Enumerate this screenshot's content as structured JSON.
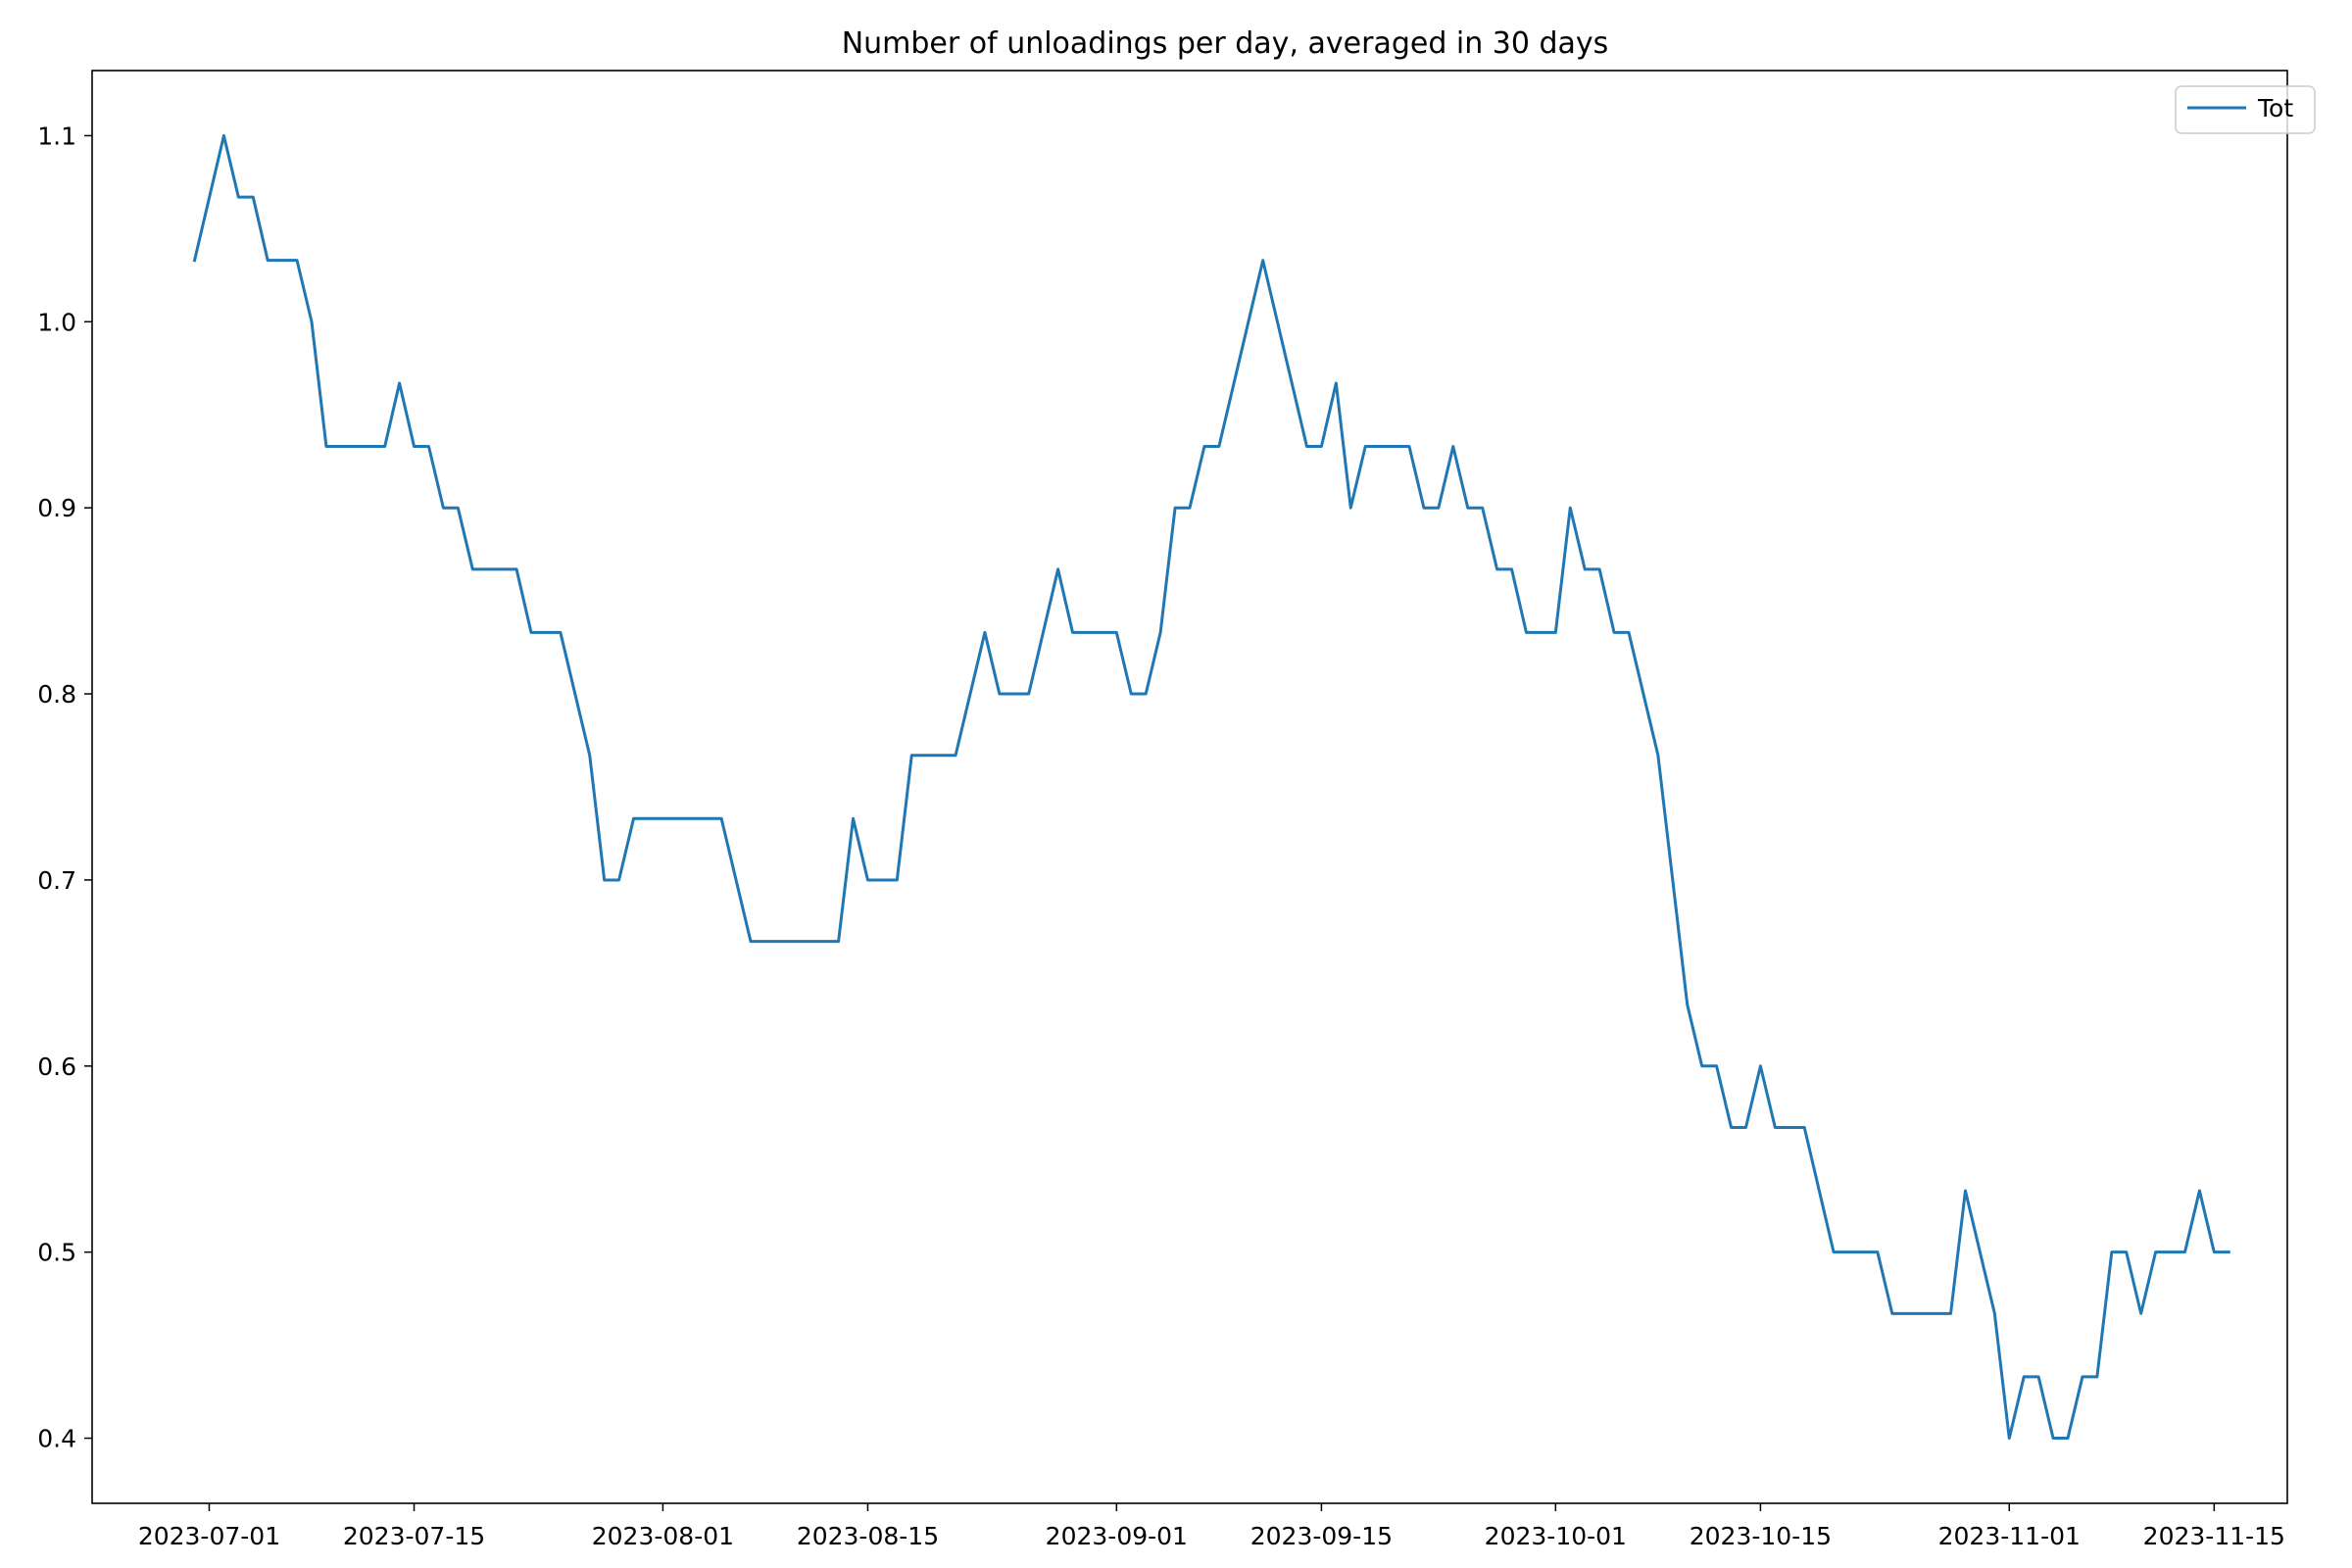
{
  "chart_data": {
    "type": "line",
    "title": "Number of unloadings per day, averaged in 30 days",
    "xlabel": "",
    "ylabel": "",
    "x_tick_labels": [
      "2023-07-01",
      "2023-07-15",
      "2023-08-01",
      "2023-08-15",
      "2023-09-01",
      "2023-09-15",
      "2023-10-01",
      "2023-10-15",
      "2023-11-01",
      "2023-11-15"
    ],
    "y_tick_labels": [
      "0.4",
      "0.5",
      "0.6",
      "0.7",
      "0.8",
      "0.9",
      "1.0",
      "1.1"
    ],
    "xlim": [
      "2023-06-23",
      "2023-11-20"
    ],
    "ylim": [
      0.365,
      1.135
    ],
    "grid": false,
    "legend_position": "top-right",
    "series": [
      {
        "name": "Tot",
        "color": "#1f77b4",
        "points": [
          [
            "2023-06-30",
            1.033
          ],
          [
            "2023-07-02",
            1.1
          ],
          [
            "2023-07-03",
            1.067
          ],
          [
            "2023-07-04",
            1.067
          ],
          [
            "2023-07-05",
            1.033
          ],
          [
            "2023-07-07",
            1.033
          ],
          [
            "2023-07-08",
            1.0
          ],
          [
            "2023-07-09",
            0.933
          ],
          [
            "2023-07-13",
            0.933
          ],
          [
            "2023-07-14",
            0.967
          ],
          [
            "2023-07-15",
            0.933
          ],
          [
            "2023-07-16",
            0.933
          ],
          [
            "2023-07-17",
            0.9
          ],
          [
            "2023-07-18",
            0.9
          ],
          [
            "2023-07-19",
            0.867
          ],
          [
            "2023-07-22",
            0.867
          ],
          [
            "2023-07-23",
            0.833
          ],
          [
            "2023-07-25",
            0.833
          ],
          [
            "2023-07-27",
            0.767
          ],
          [
            "2023-07-28",
            0.7
          ],
          [
            "2023-07-29",
            0.7
          ],
          [
            "2023-07-30",
            0.733
          ],
          [
            "2023-08-05",
            0.733
          ],
          [
            "2023-08-07",
            0.667
          ],
          [
            "2023-08-13",
            0.667
          ],
          [
            "2023-08-14",
            0.733
          ],
          [
            "2023-08-15",
            0.7
          ],
          [
            "2023-08-17",
            0.7
          ],
          [
            "2023-08-18",
            0.767
          ],
          [
            "2023-08-21",
            0.767
          ],
          [
            "2023-08-23",
            0.833
          ],
          [
            "2023-08-24",
            0.8
          ],
          [
            "2023-08-26",
            0.8
          ],
          [
            "2023-08-28",
            0.867
          ],
          [
            "2023-08-29",
            0.833
          ],
          [
            "2023-09-01",
            0.833
          ],
          [
            "2023-09-02",
            0.8
          ],
          [
            "2023-09-03",
            0.8
          ],
          [
            "2023-09-04",
            0.833
          ],
          [
            "2023-09-05",
            0.9
          ],
          [
            "2023-09-06",
            0.9
          ],
          [
            "2023-09-07",
            0.933
          ],
          [
            "2023-09-08",
            0.933
          ],
          [
            "2023-09-11",
            1.033
          ],
          [
            "2023-09-14",
            0.933
          ],
          [
            "2023-09-15",
            0.933
          ],
          [
            "2023-09-16",
            0.967
          ],
          [
            "2023-09-17",
            0.9
          ],
          [
            "2023-09-18",
            0.933
          ],
          [
            "2023-09-21",
            0.933
          ],
          [
            "2023-09-22",
            0.9
          ],
          [
            "2023-09-23",
            0.9
          ],
          [
            "2023-09-24",
            0.933
          ],
          [
            "2023-09-25",
            0.9
          ],
          [
            "2023-09-26",
            0.9
          ],
          [
            "2023-09-27",
            0.867
          ],
          [
            "2023-09-28",
            0.867
          ],
          [
            "2023-09-29",
            0.833
          ],
          [
            "2023-10-01",
            0.833
          ],
          [
            "2023-10-02",
            0.9
          ],
          [
            "2023-10-03",
            0.867
          ],
          [
            "2023-10-04",
            0.867
          ],
          [
            "2023-10-05",
            0.833
          ],
          [
            "2023-10-06",
            0.833
          ],
          [
            "2023-10-08",
            0.767
          ],
          [
            "2023-10-10",
            0.633
          ],
          [
            "2023-10-11",
            0.6
          ],
          [
            "2023-10-12",
            0.6
          ],
          [
            "2023-10-13",
            0.567
          ],
          [
            "2023-10-14",
            0.567
          ],
          [
            "2023-10-15",
            0.6
          ],
          [
            "2023-10-16",
            0.567
          ],
          [
            "2023-10-18",
            0.567
          ],
          [
            "2023-10-20",
            0.5
          ],
          [
            "2023-10-23",
            0.5
          ],
          [
            "2023-10-24",
            0.467
          ],
          [
            "2023-10-28",
            0.467
          ],
          [
            "2023-10-29",
            0.533
          ],
          [
            "2023-10-31",
            0.467
          ],
          [
            "2023-11-01",
            0.4
          ],
          [
            "2023-11-02",
            0.433
          ],
          [
            "2023-11-03",
            0.433
          ],
          [
            "2023-11-04",
            0.4
          ],
          [
            "2023-11-05",
            0.4
          ],
          [
            "2023-11-06",
            0.433
          ],
          [
            "2023-11-07",
            0.433
          ],
          [
            "2023-11-08",
            0.5
          ],
          [
            "2023-11-09",
            0.5
          ],
          [
            "2023-11-10",
            0.467
          ],
          [
            "2023-11-11",
            0.5
          ],
          [
            "2023-11-13",
            0.5
          ],
          [
            "2023-11-14",
            0.533
          ],
          [
            "2023-11-15",
            0.5
          ],
          [
            "2023-11-16",
            0.5
          ]
        ]
      }
    ]
  }
}
